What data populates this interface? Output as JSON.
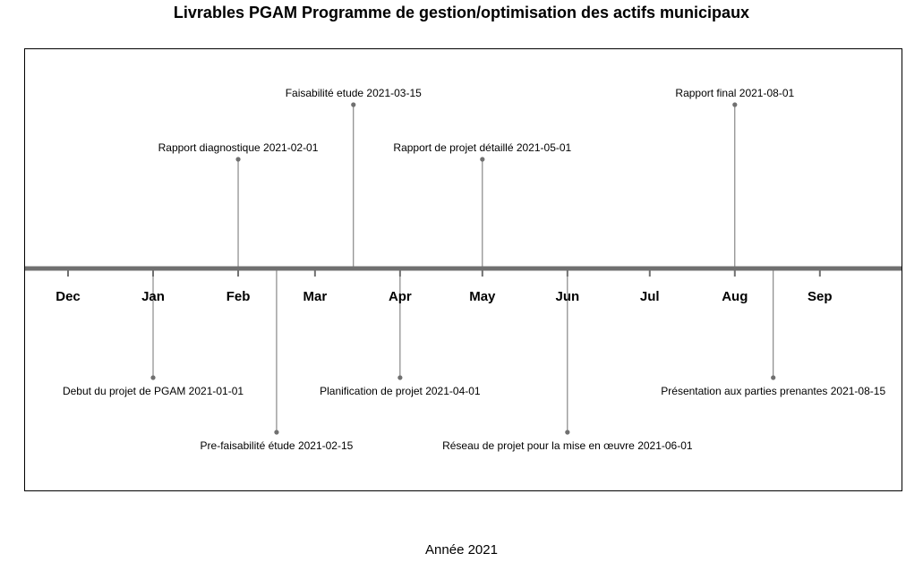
{
  "chart_data": {
    "type": "timeline",
    "title": "Livrables PGAM Programme de gestion/optimisation des actifs municipaux",
    "xlabel": "Année 2021",
    "ylabel": "",
    "grid": false,
    "legend": "none",
    "x_range": [
      "2020-12-01",
      "2021-09-30"
    ],
    "month_ticks": [
      {
        "label": "Dec",
        "date": "2020-12-01"
      },
      {
        "label": "Jan",
        "date": "2021-01-01"
      },
      {
        "label": "Feb",
        "date": "2021-02-01"
      },
      {
        "label": "Mar",
        "date": "2021-03-01"
      },
      {
        "label": "Apr",
        "date": "2021-04-01"
      },
      {
        "label": "May",
        "date": "2021-05-01"
      },
      {
        "label": "Jun",
        "date": "2021-06-01"
      },
      {
        "label": "Jul",
        "date": "2021-07-01"
      },
      {
        "label": "Aug",
        "date": "2021-08-01"
      },
      {
        "label": "Sep",
        "date": "2021-09-01"
      }
    ],
    "events": [
      {
        "date": "2021-01-01",
        "label": "Debut du projet de PGAM 2021-01-01",
        "position": -0.5
      },
      {
        "date": "2021-02-01",
        "label": "Rapport diagnostique 2021-02-01",
        "position": 0.5
      },
      {
        "date": "2021-02-15",
        "label": "Pre-faisabilité étude 2021-02-15",
        "position": -0.75
      },
      {
        "date": "2021-03-15",
        "label": "Faisabilité etude 2021-03-15",
        "position": 0.75
      },
      {
        "date": "2021-04-01",
        "label": "Planification de projet 2021-04-01",
        "position": -0.5
      },
      {
        "date": "2021-05-01",
        "label": "Rapport de projet détaillé 2021-05-01",
        "position": 0.5
      },
      {
        "date": "2021-06-01",
        "label": "Réseau de projet pour la mise en œuvre 2021-06-01",
        "position": -0.75
      },
      {
        "date": "2021-08-01",
        "label": "Rapport final 2021-08-01",
        "position": 0.75
      },
      {
        "date": "2021-08-15",
        "label": "Présentation aux parties prenantes 2021-08-15",
        "position": -0.5
      }
    ],
    "colors": {
      "line": "#707070",
      "stem": "#707070",
      "point": "#707070",
      "frame": "#000000",
      "text": "#000000"
    }
  }
}
